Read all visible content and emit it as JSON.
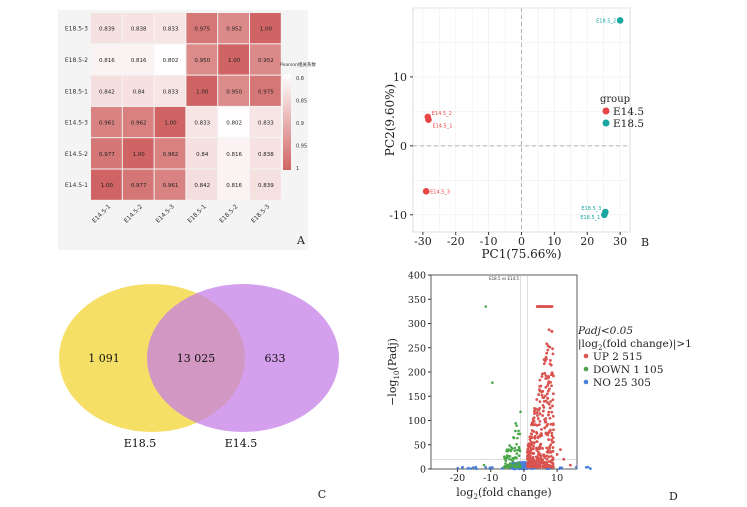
{
  "panelA": {
    "label": "A",
    "rows": [
      "E18.5-3",
      "E18.5-2",
      "E18.5-1",
      "E14.5-3",
      "E14.5-2",
      "E14.5-1"
    ],
    "cols": [
      "E14.5-1",
      "E14.5-2",
      "E14.5-3",
      "E18.5-1",
      "E18.5-2",
      "E18.5-3"
    ],
    "values": [
      [
        "0.839",
        "0.838",
        "0.833",
        "0.975",
        "0.952",
        "1.00"
      ],
      [
        "0.816",
        "0.816",
        "0.802",
        "0.950",
        "1.00",
        "0.952"
      ],
      [
        "0.842",
        "0.84",
        "0.833",
        "1.00",
        "0.950",
        "0.975"
      ],
      [
        "0.961",
        "0.962",
        "1.00",
        "0.833",
        "0.802",
        "0.833"
      ],
      [
        "0.977",
        "1.00",
        "0.962",
        "0.84",
        "0.816",
        "0.838"
      ],
      [
        "1.00",
        "0.977",
        "0.961",
        "0.842",
        "0.816",
        "0.839"
      ]
    ],
    "legend_title": "Pearson相关系数",
    "legend_ticks": [
      "0.8",
      "0.85",
      "0.9",
      "0.95",
      "1"
    ],
    "colors": {
      "low": "#ffffff",
      "high": "#d06464"
    }
  },
  "panelB": {
    "label": "B",
    "xlabel": "PC1(75.66%)",
    "ylabel": "PC2(9.60%)",
    "xticks": [
      "-30",
      "-20",
      "-10",
      "0",
      "10",
      "20",
      "30"
    ],
    "yticks": [
      "-10",
      "0",
      "10"
    ],
    "legend_title": "group",
    "groups": [
      {
        "name": "E14.5",
        "color": "#e84545"
      },
      {
        "name": "E18.5",
        "color": "#1aa5a0"
      }
    ],
    "points": [
      {
        "x": -28.5,
        "y": 4.2,
        "group": 0,
        "label": "E14.5_2"
      },
      {
        "x": -28.3,
        "y": 3.8,
        "group": 0,
        "label": "E14.5_1"
      },
      {
        "x": -29.0,
        "y": -6.6,
        "group": 0,
        "label": "E14.5_3"
      },
      {
        "x": 30.0,
        "y": 18.2,
        "group": 1,
        "label": "E18.5_2"
      },
      {
        "x": 25.5,
        "y": -9.6,
        "group": 1,
        "label": "E18.5_3"
      },
      {
        "x": 25.2,
        "y": -10.0,
        "group": 1,
        "label": "E18.5_1"
      }
    ]
  },
  "panelC": {
    "label": "C",
    "left_only": "1 091",
    "overlap": "13 025",
    "right_only": "633",
    "left_name": "E18.5",
    "right_name": "E14.5",
    "left_color": "#f5dc5a",
    "right_color": "#c47ce8"
  },
  "panelD": {
    "label": "D",
    "title": "E18.5 vs E14.5",
    "xticks": [
      "-20",
      "-10",
      "0",
      "10"
    ],
    "yticks": [
      "0",
      "50",
      "100",
      "150",
      "200",
      "250",
      "300",
      "350",
      "400"
    ],
    "xlabel_main": "log",
    "xlabel_sub": "2",
    "xlabel_rest": "(fold change)",
    "ylabel_main": "−log",
    "ylabel_sub": "10",
    "ylabel_rest": "(Padj)",
    "legend_line1": "Padj<0.05",
    "legend_line2": "|log",
    "legend_line2_sub": "2",
    "legend_line2_rest": "(fold change)|>1",
    "legend_items": [
      {
        "label": "UP 2 515",
        "color": "#d9534f"
      },
      {
        "label": "DOWN 1 105",
        "color": "#4aa64a"
      },
      {
        "label": "NO 25 305",
        "color": "#4a7fd8"
      }
    ]
  }
}
